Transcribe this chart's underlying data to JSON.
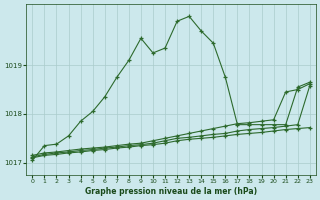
{
  "xlabel": "Graphe pression niveau de la mer (hPa)",
  "background_color": "#cce8ec",
  "grid_color": "#aacccc",
  "line_color": "#2d6a2d",
  "text_color": "#1a4a1a",
  "ylim": [
    1016.75,
    1020.25
  ],
  "xlim": [
    -0.5,
    23.5
  ],
  "yticks": [
    1017,
    1018,
    1019
  ],
  "xticks": [
    0,
    1,
    2,
    3,
    4,
    5,
    6,
    7,
    8,
    9,
    10,
    11,
    12,
    13,
    14,
    15,
    16,
    17,
    18,
    19,
    20,
    21,
    22,
    23
  ],
  "hours": [
    0,
    1,
    2,
    3,
    4,
    5,
    6,
    7,
    8,
    9,
    10,
    11,
    12,
    13,
    14,
    15,
    16,
    17,
    18,
    19,
    20,
    21,
    22,
    23
  ],
  "line1": [
    1017.05,
    1017.35,
    1017.38,
    1017.55,
    1017.85,
    1018.05,
    1018.35,
    1018.75,
    1019.1,
    1019.55,
    1019.25,
    1019.35,
    1019.9,
    1020.0,
    1019.7,
    1019.45,
    1018.75,
    1017.78,
    1017.78,
    1017.78,
    1017.78,
    1017.78,
    1018.55,
    1018.65
  ],
  "line2": [
    1017.15,
    1017.2,
    1017.22,
    1017.25,
    1017.28,
    1017.3,
    1017.32,
    1017.35,
    1017.38,
    1017.4,
    1017.45,
    1017.5,
    1017.55,
    1017.6,
    1017.65,
    1017.7,
    1017.75,
    1017.8,
    1017.82,
    1017.85,
    1017.88,
    1018.45,
    1018.5,
    1018.62
  ],
  "line3": [
    1017.12,
    1017.17,
    1017.2,
    1017.22,
    1017.25,
    1017.27,
    1017.3,
    1017.32,
    1017.35,
    1017.37,
    1017.4,
    1017.45,
    1017.5,
    1017.52,
    1017.55,
    1017.58,
    1017.6,
    1017.65,
    1017.68,
    1017.7,
    1017.72,
    1017.75,
    1017.78,
    1018.58
  ],
  "line4": [
    1017.1,
    1017.15,
    1017.17,
    1017.2,
    1017.22,
    1017.25,
    1017.27,
    1017.3,
    1017.32,
    1017.35,
    1017.37,
    1017.4,
    1017.45,
    1017.48,
    1017.5,
    1017.52,
    1017.55,
    1017.58,
    1017.6,
    1017.62,
    1017.65,
    1017.68,
    1017.7,
    1017.72
  ]
}
